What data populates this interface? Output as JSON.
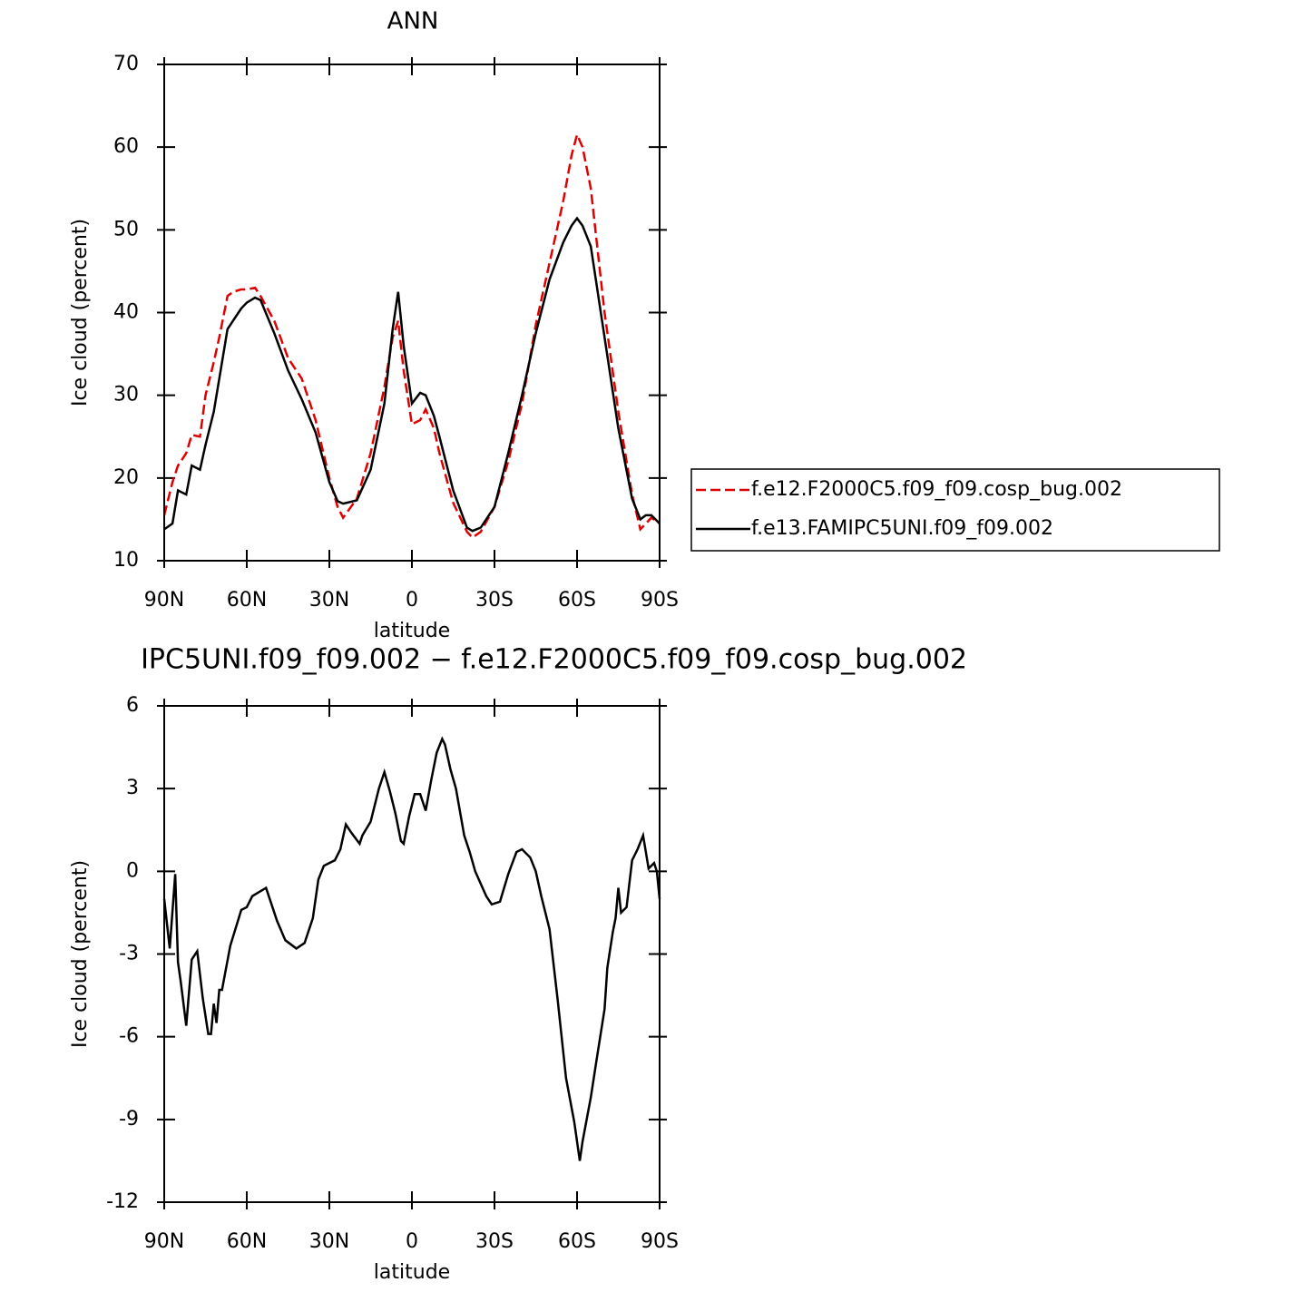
{
  "chart_data": [
    {
      "type": "line",
      "title": "ANN",
      "xlabel": "latitude",
      "ylabel": "Ice cloud (percent)",
      "x": [
        90,
        87,
        85,
        82,
        80,
        77,
        75,
        72,
        70,
        67,
        65,
        62,
        60,
        57,
        55,
        50,
        45,
        40,
        35,
        30,
        27,
        25,
        20,
        15,
        10,
        7,
        5,
        3,
        0,
        -3,
        -5,
        -8,
        -10,
        -15,
        -20,
        -22,
        -25,
        -30,
        -35,
        -40,
        -45,
        -50,
        -55,
        -58,
        -60,
        -62,
        -65,
        -70,
        -75,
        -80,
        -83,
        -85,
        -87,
        -90
      ],
      "series": [
        {
          "name": "f.e12.F2000C5.f09_f09.cosp_bug.002",
          "color": "#e00000",
          "linestyle": "dashed",
          "values": [
            15.5,
            19.5,
            21.5,
            23,
            25.2,
            25,
            30,
            34,
            37,
            42,
            42.5,
            42.8,
            42.8,
            43,
            42,
            39,
            34.5,
            32,
            27,
            20,
            16.5,
            15.2,
            17.5,
            23,
            31,
            37,
            39,
            33,
            26.5,
            27,
            28.3,
            26,
            23,
            17,
            13.5,
            12.8,
            13.5,
            16.5,
            22,
            29,
            38.5,
            46,
            53.5,
            59,
            61.5,
            60,
            55,
            40,
            28,
            18,
            13.8,
            14.5,
            15.2,
            14.5
          ]
        },
        {
          "name": "f.e13.FAMIPC5UNI.f09_f09.002",
          "color": "#000000",
          "linestyle": "solid",
          "values": [
            13.8,
            14.5,
            18.5,
            18,
            21.5,
            21,
            24,
            28,
            32,
            38,
            39,
            40.5,
            41.2,
            41.8,
            41.5,
            37.5,
            33,
            29.5,
            25.5,
            19.5,
            17.2,
            16.9,
            17.3,
            21,
            29,
            38,
            42.5,
            36,
            29,
            30.3,
            30,
            27.5,
            25,
            18.5,
            14,
            13.6,
            14,
            16.5,
            23,
            30,
            37.5,
            44,
            48.5,
            50.5,
            51.4,
            50.5,
            48,
            37,
            26,
            17.5,
            15,
            15.5,
            15.5,
            14.5
          ]
        }
      ],
      "xlim": [
        90,
        -90
      ],
      "xticks": [
        {
          "value": 90,
          "label": "90N"
        },
        {
          "value": 60,
          "label": "60N"
        },
        {
          "value": 30,
          "label": "30N"
        },
        0,
        {
          "value": -30,
          "label": "30S"
        },
        {
          "value": -60,
          "label": "60S"
        },
        {
          "value": -90,
          "label": "90S"
        }
      ],
      "ylim": [
        10,
        70
      ],
      "yticks": [
        10,
        20,
        30,
        40,
        50,
        60,
        70
      ],
      "grid": false,
      "legend": "right"
    },
    {
      "type": "line",
      "title": "IPC5UNI.f09_f09.002 − f.e12.F2000C5.f09_f09.cosp_bug.002",
      "xlabel": "latitude",
      "ylabel": "Ice cloud (percent)",
      "x": [
        90,
        88,
        86,
        85,
        84,
        82,
        80,
        78,
        76,
        74,
        73,
        72,
        71,
        70,
        69,
        66,
        62,
        60,
        58,
        53,
        51,
        49,
        46,
        42,
        39,
        36,
        34,
        32,
        28,
        26,
        24,
        22,
        19,
        18,
        15,
        12,
        10,
        8,
        6,
        4,
        3,
        1,
        -1,
        -3,
        -5,
        -7,
        -9,
        -11,
        -12,
        -14,
        -16,
        -19,
        -21,
        -23,
        -27,
        -29,
        -32,
        -35,
        -38,
        -40,
        -43,
        -45,
        -47,
        -50,
        -53,
        -56,
        -59,
        -61,
        -62,
        -65,
        -67,
        -70,
        -71,
        -73,
        -74,
        -75,
        -76,
        -78,
        -80,
        -82,
        -84,
        -86,
        -88,
        -89,
        -90
      ],
      "series": [
        {
          "color": "#000000",
          "linestyle": "solid",
          "values": [
            -1,
            -2.8,
            -0.1,
            -3.3,
            -4,
            -5.6,
            -3.2,
            -2.9,
            -4.6,
            -5.9,
            -5.9,
            -4.8,
            -5.5,
            -4.3,
            -4.3,
            -2.7,
            -1.4,
            -1.3,
            -0.9,
            -0.6,
            -1.2,
            -1.8,
            -2.5,
            -2.8,
            -2.6,
            -1.7,
            -0.3,
            0.2,
            0.4,
            0.8,
            1.7,
            1.4,
            1.0,
            1.3,
            1.8,
            3.0,
            3.6,
            2.9,
            2.1,
            1.1,
            1.0,
            2.0,
            2.8,
            2.8,
            2.2,
            3.3,
            4.3,
            4.8,
            4.6,
            3.7,
            3.0,
            1.3,
            0.7,
            0,
            -0.9,
            -1.2,
            -1.1,
            -0.1,
            0.7,
            0.8,
            0.5,
            0,
            -0.9,
            -2.1,
            -4.7,
            -7.5,
            -9.1,
            -10.5,
            -9.8,
            -8.2,
            -6.9,
            -5.0,
            -3.5,
            -2.2,
            -1.7,
            -0.6,
            -1.5,
            -1.3,
            0.4,
            0.8,
            1.3,
            0.1,
            0.3,
            0,
            -1
          ]
        }
      ],
      "xlim": [
        90,
        -90
      ],
      "xticks": [
        {
          "value": 90,
          "label": "90N"
        },
        {
          "value": 60,
          "label": "60N"
        },
        {
          "value": 30,
          "label": "30N"
        },
        0,
        {
          "value": -30,
          "label": "30S"
        },
        {
          "value": -60,
          "label": "60S"
        },
        {
          "value": -90,
          "label": "90S"
        }
      ],
      "ylim": [
        -12,
        6
      ],
      "yticks": [
        -12,
        -9,
        -6,
        -3,
        0,
        3,
        6
      ],
      "grid": false
    }
  ]
}
